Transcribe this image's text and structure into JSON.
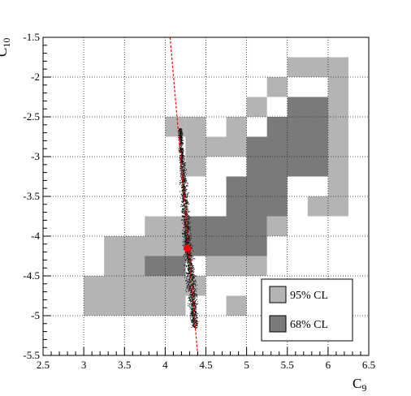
{
  "chart_data": {
    "type": "heatmap",
    "title": "",
    "xlabel": {
      "main": "C",
      "sub": "9"
    },
    "ylabel": {
      "main": "C",
      "sub": "10"
    },
    "xlim": [
      2.5,
      6.5
    ],
    "ylim": [
      -5.5,
      -1.5
    ],
    "xticks": [
      "2.5",
      "3",
      "3.5",
      "4",
      "4.5",
      "5",
      "5.5",
      "6",
      "6.5"
    ],
    "yticks": [
      "-1.5",
      "-2",
      "-2.5",
      "-3",
      "-3.5",
      "-4",
      "-4.5",
      "-5",
      "-5.5"
    ],
    "grid": true,
    "colors": {
      "cl95": "#b4b4b4",
      "cl68": "#7a7a7a",
      "scatter": "#111111",
      "line": "#ff0000",
      "point": "#ff0000"
    },
    "cell_width": 0.25,
    "cell_height": 0.25,
    "regions": [
      {
        "name": "95% CL",
        "key": "cl95",
        "cells": [
          [
            3.0,
            -5.0,
            5,
            2
          ],
          [
            3.25,
            -4.5,
            4,
            2
          ],
          [
            3.5,
            -4.25,
            3,
            1
          ],
          [
            3.75,
            -4.0,
            2,
            1
          ],
          [
            4.75,
            -4.25,
            1,
            1
          ],
          [
            4.75,
            -3.75,
            2,
            1
          ],
          [
            4.25,
            -4.75,
            1,
            1
          ],
          [
            4.75,
            -5.0,
            1,
            1
          ],
          [
            4.5,
            -4.5,
            3,
            1
          ],
          [
            5.75,
            -3.75,
            2,
            1
          ],
          [
            6.0,
            -3.5,
            1,
            2
          ],
          [
            5.25,
            -4.0,
            1,
            1
          ],
          [
            4.0,
            -2.75,
            1,
            1
          ],
          [
            4.25,
            -3.25,
            1,
            2
          ],
          [
            4.25,
            -2.75,
            1,
            1
          ],
          [
            4.5,
            -3.0,
            2,
            1
          ],
          [
            4.75,
            -2.75,
            1,
            1
          ],
          [
            5.0,
            -2.5,
            1,
            1
          ],
          [
            5.25,
            -2.25,
            1,
            1
          ],
          [
            5.5,
            -2.0,
            3,
            1
          ],
          [
            6.0,
            -2.5,
            1,
            2
          ],
          [
            6.0,
            -3.0,
            1,
            2
          ]
        ]
      },
      {
        "name": "68% CL",
        "key": "cl68",
        "cells": [
          [
            3.75,
            -4.5,
            2,
            1
          ],
          [
            4.25,
            -4.25,
            2,
            1
          ],
          [
            4.25,
            -4.0,
            2,
            1
          ],
          [
            4.5,
            -4.25,
            3,
            1
          ],
          [
            4.5,
            -4.0,
            3,
            1
          ],
          [
            4.75,
            -3.75,
            3,
            1
          ],
          [
            4.75,
            -3.5,
            3,
            1
          ],
          [
            5.0,
            -3.25,
            4,
            1
          ],
          [
            5.0,
            -3.0,
            4,
            1
          ],
          [
            5.25,
            -2.75,
            3,
            1
          ],
          [
            5.5,
            -2.5,
            2,
            1
          ]
        ]
      }
    ],
    "scatter_band": {
      "centerline": [
        [
          4.18,
          -2.65
        ],
        [
          4.22,
          -3.3
        ],
        [
          4.26,
          -4.0
        ],
        [
          4.32,
          -4.6
        ],
        [
          4.36,
          -5.15
        ]
      ],
      "halfwidth": [
        0.03,
        0.06,
        0.07,
        0.09,
        0.05
      ]
    },
    "line": {
      "x": [
        4.06,
        4.4
      ],
      "y": [
        -1.5,
        -5.5
      ]
    },
    "best_fit": {
      "x": 4.27,
      "y": -4.15
    },
    "legend": {
      "position": "bottom-right",
      "entries": [
        {
          "label": "95% CL",
          "key": "cl95"
        },
        {
          "label": "68% CL",
          "key": "cl68"
        }
      ]
    }
  }
}
